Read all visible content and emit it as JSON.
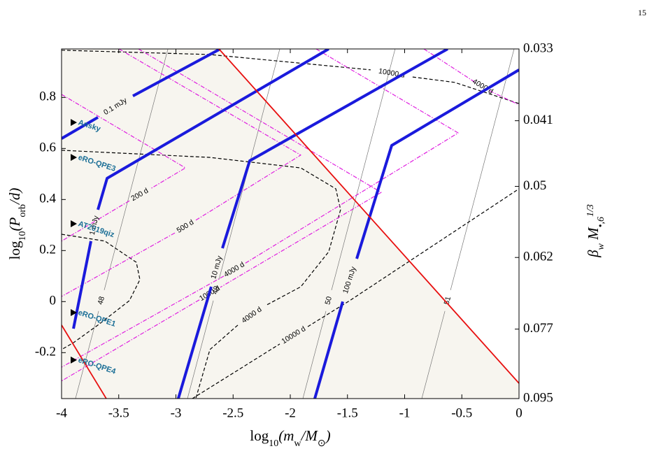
{
  "page_number": "15",
  "chart_data": {
    "type": "line",
    "xlabel": [
      "log",
      "10",
      "(m",
      "w",
      "/M",
      "⊙",
      ")"
    ],
    "ylabel": [
      "log",
      "10",
      "(P",
      "orb",
      "/d)"
    ],
    "y2label": [
      "β",
      "w",
      " M",
      "•,6",
      "1/3"
    ],
    "xlim": [
      -4,
      0
    ],
    "ylim": [
      -0.38,
      0.99
    ],
    "y2lim": [
      0.095,
      0.033
    ],
    "y2scale": "log",
    "xticks": [
      -4,
      -3.5,
      -3,
      -2.5,
      -2,
      -1.5,
      -1,
      -0.5,
      0
    ],
    "yticks": [
      -0.2,
      0,
      0.2,
      0.4,
      0.6,
      0.8
    ],
    "y2ticks": [
      0.033,
      0.041,
      0.05,
      0.062,
      0.077,
      0.095
    ],
    "region": {
      "color": "#f7f5ef",
      "x": [
        -4,
        -2.624,
        0,
        0,
        -4
      ],
      "y": [
        0.99,
        0.99,
        -0.32,
        -0.38,
        -0.38
      ]
    },
    "series": [
      {
        "label": "48",
        "color": "#777777",
        "style": "thin",
        "x": [
          -3.878,
          -3.676,
          null,
          -3.627,
          -3.07
        ],
        "y": [
          -0.38,
          -0.037,
          null,
          0.045,
          0.99
        ]
      },
      {
        "label": "49",
        "color": "#777777",
        "style": "thin",
        "x": [
          -2.899,
          -2.673,
          null,
          -2.624,
          -2.092
        ],
        "y": [
          -0.38,
          0.004,
          null,
          0.086,
          0.99
        ]
      },
      {
        "label": "50",
        "color": "#777777",
        "style": "thin",
        "x": [
          -1.89,
          -1.688,
          null,
          -1.639,
          -1.083
        ],
        "y": [
          -0.38,
          -0.037,
          null,
          0.045,
          0.99
        ]
      },
      {
        "label": "51",
        "color": "#777777",
        "style": "thin",
        "x": [
          -0.85,
          -0.648,
          null,
          -0.599,
          -0.043
        ],
        "y": [
          -0.38,
          -0.037,
          null,
          0.045,
          0.99
        ]
      },
      {
        "label": "10000 d",
        "color": "#000000",
        "style": "dashed",
        "x": [
          -4,
          -2.703,
          -1.297,
          null,
          -0.93,
          -0.563,
          0
        ],
        "y": [
          0.985,
          0.968,
          0.908,
          null,
          0.88,
          0.859,
          0.776
        ]
      },
      {
        "label": "4000 d",
        "color": "#000000",
        "style": "dashed",
        "x": [
          -4,
          -2.703,
          -1.908,
          -1.602,
          -1.56,
          -1.664,
          -1.908,
          -2.214,
          null,
          -2.459,
          -2.703,
          -2.826
        ],
        "y": [
          0.593,
          0.565,
          0.524,
          0.442,
          0.36,
          0.195,
          0.058,
          -0.015,
          null,
          -0.092,
          -0.188,
          -0.38
        ]
      },
      {
        "color": "#000000",
        "style": "dashed",
        "x": [
          -4,
          -3.621,
          -3.346,
          -3.315,
          -3.407,
          -3.682,
          -3.896,
          -4
        ],
        "y": [
          0.264,
          0.237,
          0.154,
          0.086,
          0.004,
          -0.092,
          -0.161,
          -0.188
        ]
      },
      {
        "label": "10000 d",
        "color": "#000000",
        "style": "dashed",
        "x": [
          -2.856,
          -2.092,
          null,
          -1.847,
          -1.48,
          0
        ],
        "y": [
          -0.38,
          -0.166,
          null,
          -0.098,
          0.004,
          0.442
        ]
      },
      {
        "label": "200 d",
        "color": "#e020e0",
        "style": "dashdot",
        "x": [
          -4,
          -2.917,
          -3.223,
          null,
          -3.407,
          -4
        ],
        "y": [
          0.812,
          0.524,
          0.442,
          null,
          0.395,
          0.237
        ]
      },
      {
        "label": "500 d",
        "color": "#e020e0",
        "style": "dashdot",
        "x": [
          -3.498,
          -1.908,
          -2.826,
          null,
          -3.009,
          -4
        ],
        "y": [
          0.99,
          0.574,
          0.319,
          null,
          0.269,
          0.02
        ]
      },
      {
        "label": "1000 d",
        "color": "#e020e0",
        "style": "dashdot",
        "x": [
          -3.327,
          -1.205,
          -2.612,
          null,
          -2.795,
          -4
        ],
        "y": [
          0.99,
          0.428,
          0.056,
          null,
          0.007,
          -0.311
        ]
      },
      {
        "label": "4000 d",
        "color": "#e020e0",
        "style": "dashdot",
        "x": [
          -1.774,
          -0.532,
          -2.398,
          null,
          -2.581,
          -4
        ],
        "y": [
          0.99,
          0.661,
          0.149,
          null,
          0.1,
          -0.257
        ]
      },
      {
        "label": "4000 d",
        "color": "#e020e0",
        "style": "dashdot",
        "x": [
          -0.832,
          -0.379,
          null,
          -0.257,
          0
        ],
        "y": [
          0.99,
          0.858,
          null,
          0.826,
          0.771
        ]
      },
      {
        "label": "0.1 mJy",
        "color": "#1a1adc",
        "style": "thick",
        "x": [
          -4,
          -3.682,
          null,
          -3.376,
          -2.612
        ],
        "y": [
          0.639,
          0.722,
          null,
          0.806,
          0.99
        ]
      },
      {
        "label": "1 mJy",
        "color": "#1a1adc",
        "style": "thick",
        "x": [
          -3.896,
          -3.743,
          null,
          -3.682,
          -3.602,
          -1.664
        ],
        "y": [
          -0.106,
          0.237,
          null,
          0.36,
          0.483,
          0.99
        ]
      },
      {
        "label": "10 mJy",
        "color": "#1a1adc",
        "style": "thick",
        "x": [
          -2.979,
          -2.691,
          null,
          -2.593,
          -2.355,
          -0.624
        ],
        "y": [
          -0.38,
          0.058,
          null,
          0.209,
          0.552,
          0.99
        ]
      },
      {
        "label": "100 mJy",
        "color": "#1a1adc",
        "style": "thick",
        "x": [
          -1.786,
          -1.541,
          null,
          -1.419,
          -1.113,
          0
        ],
        "y": [
          -0.38,
          0.0,
          null,
          0.168,
          0.612,
          0.908
        ]
      },
      {
        "color": "#e81010",
        "style": "solid",
        "x": [
          -2.624,
          0,
          null,
          -4,
          -3.609
        ],
        "y": [
          0.99,
          -0.32,
          null,
          -0.092,
          -0.38
        ]
      }
    ],
    "markers": {
      "color": "#000000",
      "label_color": "#1a6e96",
      "x": [
        -3.896,
        -3.896,
        -3.896,
        -3.896,
        -3.896
      ],
      "y": [
        0.702,
        0.565,
        0.305,
        -0.043,
        -0.229
      ],
      "labels": [
        "Ansky",
        "eRO-QPE3",
        "AT2019qiz",
        "eRO-QPE1",
        "eRO-QPE4"
      ]
    }
  }
}
